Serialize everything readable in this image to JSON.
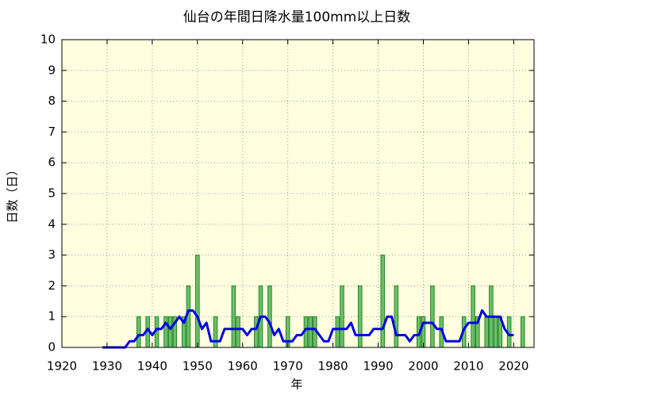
{
  "chart_data": {
    "type": "bar",
    "title": "仙台の年間日降水量100mm以上日数",
    "xlabel": "年",
    "ylabel": "日数（日）",
    "x": [
      1929,
      1930,
      1931,
      1932,
      1933,
      1934,
      1935,
      1936,
      1937,
      1938,
      1939,
      1940,
      1941,
      1942,
      1943,
      1944,
      1945,
      1946,
      1947,
      1948,
      1949,
      1950,
      1951,
      1952,
      1953,
      1954,
      1955,
      1956,
      1957,
      1958,
      1959,
      1960,
      1961,
      1962,
      1963,
      1964,
      1965,
      1966,
      1967,
      1968,
      1969,
      1970,
      1971,
      1972,
      1973,
      1974,
      1975,
      1976,
      1977,
      1978,
      1979,
      1980,
      1981,
      1982,
      1983,
      1984,
      1985,
      1986,
      1987,
      1988,
      1989,
      1990,
      1991,
      1992,
      1993,
      1994,
      1995,
      1996,
      1997,
      1998,
      1999,
      2000,
      2001,
      2002,
      2003,
      2004,
      2005,
      2006,
      2007,
      2008,
      2009,
      2010,
      2011,
      2012,
      2013,
      2014,
      2015,
      2016,
      2017,
      2018,
      2019,
      2020,
      2021,
      2022
    ],
    "series": [
      {
        "type": "bar",
        "color": "#66c266",
        "values": [
          0,
          0,
          0,
          0,
          0,
          0,
          0,
          0,
          1,
          0,
          1,
          0,
          1,
          0,
          1,
          1,
          1,
          0,
          1,
          2,
          0,
          3,
          0,
          0,
          0,
          1,
          0,
          0,
          0,
          2,
          1,
          0,
          0,
          0,
          1,
          2,
          0,
          2,
          0,
          0,
          0,
          1,
          0,
          0,
          0,
          1,
          1,
          1,
          0,
          0,
          0,
          0,
          1,
          2,
          0,
          0,
          0,
          2,
          0,
          0,
          0,
          0,
          3,
          0,
          0,
          2,
          0,
          0,
          0,
          0,
          1,
          1,
          0,
          2,
          0,
          1,
          0,
          0,
          0,
          0,
          1,
          0,
          2,
          1,
          0,
          1,
          2,
          1,
          1,
          0,
          1,
          0,
          0,
          1
        ]
      },
      {
        "type": "line",
        "color": "#0000e6",
        "values": [
          0,
          0,
          0,
          0,
          0,
          0,
          0.2,
          0.2,
          0.4,
          0.4,
          0.6,
          0.4,
          0.6,
          0.6,
          0.8,
          0.6,
          0.8,
          1.0,
          0.8,
          1.2,
          1.2,
          1.0,
          0.6,
          0.8,
          0.2,
          0.2,
          0.2,
          0.6,
          0.6,
          0.6,
          0.6,
          0.6,
          0.4,
          0.6,
          0.6,
          1.0,
          1.0,
          0.8,
          0.4,
          0.6,
          0.2,
          0.2,
          0.2,
          0.4,
          0.4,
          0.6,
          0.6,
          0.6,
          0.4,
          0.2,
          0.2,
          0.6,
          0.6,
          0.6,
          0.6,
          0.8,
          0.4,
          0.4,
          0.4,
          0.4,
          0.6,
          0.6,
          0.6,
          1.0,
          1.0,
          0.4,
          0.4,
          0.4,
          0.2,
          0.4,
          0.4,
          0.8,
          0.8,
          0.8,
          0.6,
          0.6,
          0.2,
          0.2,
          0.2,
          0.2,
          0.6,
          0.8,
          0.8,
          0.8,
          1.2,
          1.0,
          1.0,
          1.0,
          1.0,
          0.6,
          0.4,
          0.4,
          null,
          null
        ]
      }
    ],
    "xlim": [
      1920,
      2024.5
    ],
    "xticks": [
      1920,
      1930,
      1940,
      1950,
      1960,
      1970,
      1980,
      1990,
      2000,
      2010,
      2020
    ],
    "ylim": [
      0,
      10
    ],
    "yticks": [
      0,
      1,
      2,
      3,
      4,
      5,
      6,
      7,
      8,
      9,
      10
    ],
    "grid": true,
    "background": "#ffffe0"
  }
}
